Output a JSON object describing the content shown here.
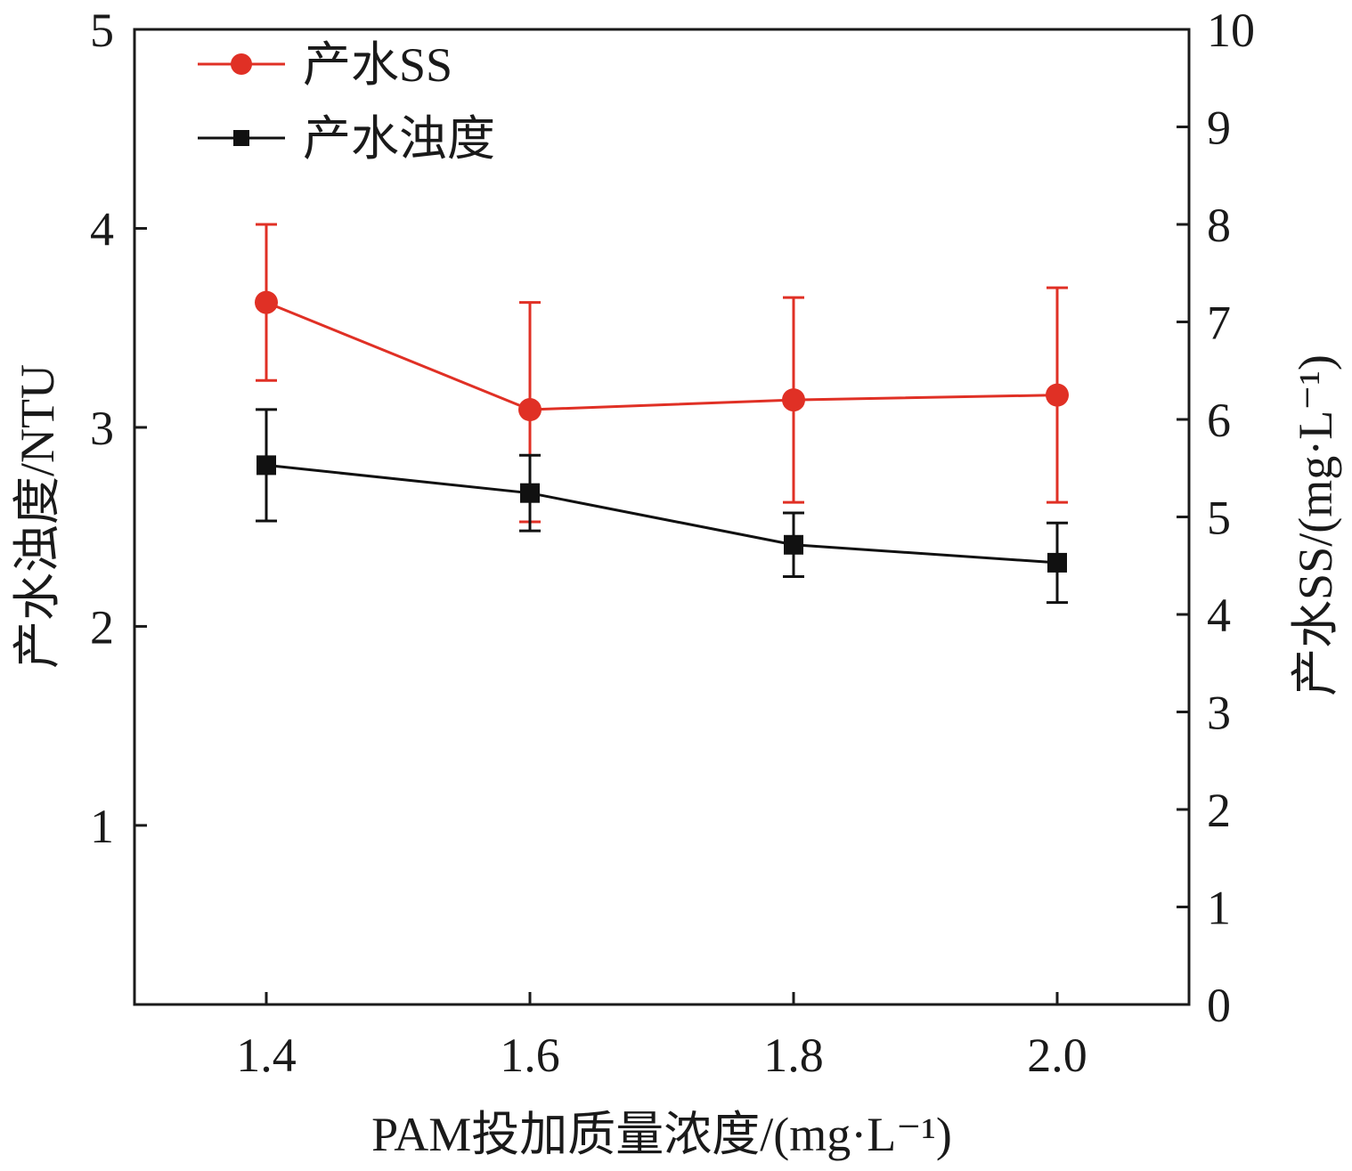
{
  "chart_data": {
    "type": "line",
    "x": [
      1.4,
      1.6,
      1.8,
      2.0
    ],
    "x_tick_labels": [
      "1.4",
      "1.6",
      "1.8",
      "2.0"
    ],
    "xlim": [
      1.3,
      2.1
    ],
    "xlabel": "PAM投加质量浓度/(mg·L⁻¹)",
    "y_left": {
      "label": "产水浊度/NTU",
      "lim": [
        0.1,
        5.0
      ],
      "ticks": [
        1,
        2,
        3,
        4,
        5
      ],
      "tick_labels": [
        "1",
        "2",
        "3",
        "4",
        "5"
      ]
    },
    "y_right": {
      "label": "产水SS/(mg·L⁻¹)",
      "lim": [
        0,
        10
      ],
      "ticks": [
        0,
        1,
        2,
        3,
        4,
        5,
        6,
        7,
        8,
        9,
        10
      ],
      "tick_labels": [
        "0",
        "1",
        "2",
        "3",
        "4",
        "5",
        "6",
        "7",
        "8",
        "9",
        "10"
      ]
    },
    "series": [
      {
        "name": "产水SS",
        "axis": "right",
        "color": "#e03025",
        "marker": "circle",
        "values": [
          7.2,
          6.1,
          6.2,
          6.25
        ],
        "err_low": [
          6.4,
          4.95,
          5.15,
          5.15
        ],
        "err_high": [
          8.0,
          7.2,
          7.25,
          7.35
        ]
      },
      {
        "name": "产水浊度",
        "axis": "left",
        "color": "#111111",
        "marker": "square",
        "values": [
          2.81,
          2.67,
          2.41,
          2.32
        ],
        "err_low": [
          2.53,
          2.48,
          2.25,
          2.12
        ],
        "err_high": [
          3.09,
          2.86,
          2.57,
          2.52
        ]
      }
    ],
    "legend": {
      "position": "top-left"
    },
    "grid": false
  }
}
